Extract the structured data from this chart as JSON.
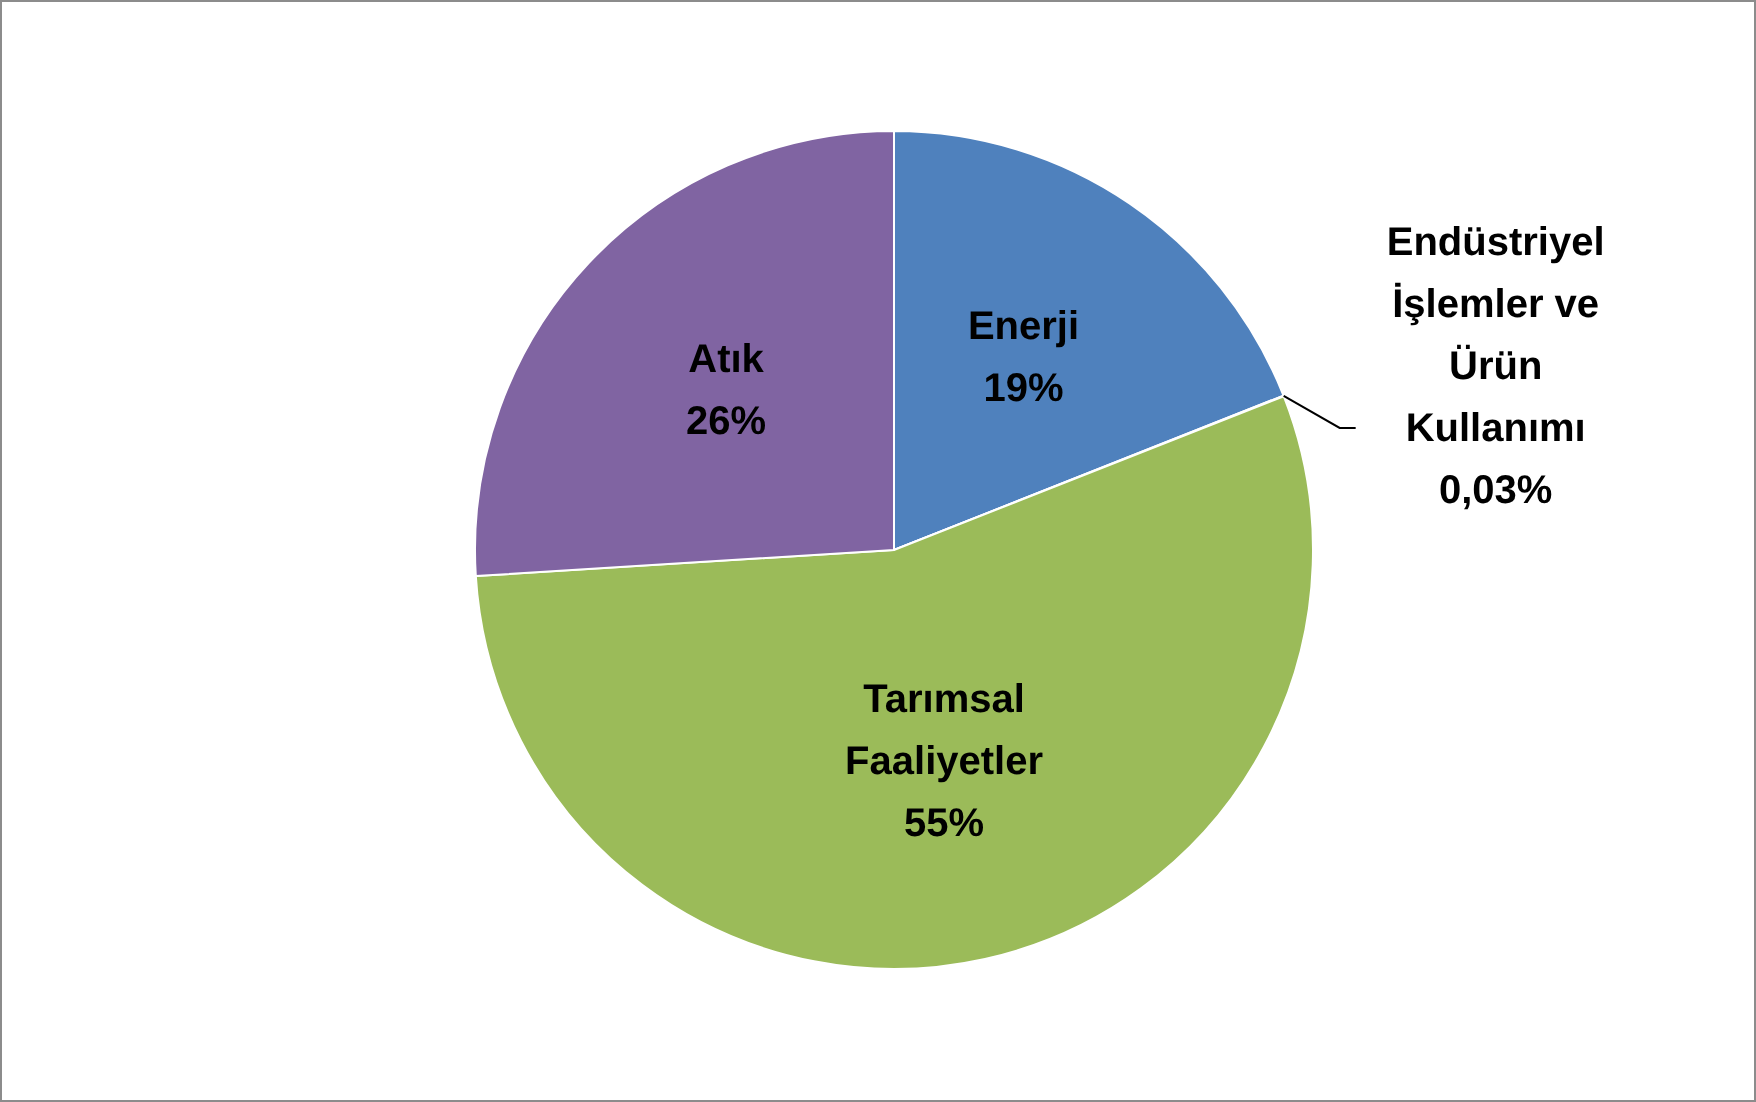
{
  "chart_data": {
    "type": "pie",
    "categories": [
      "Enerji",
      "Endüstriyel İşlemler ve Ürün Kullanımı",
      "Tarımsal Faaliyetler",
      "Atık"
    ],
    "values": [
      19,
      0.03,
      55,
      26
    ],
    "colors": [
      "#4f81bd",
      "#c0504d",
      "#9bbb59",
      "#8064a2"
    ],
    "value_labels": [
      "19%",
      "0,03%",
      "55%",
      "26%"
    ],
    "legend": false
  }
}
